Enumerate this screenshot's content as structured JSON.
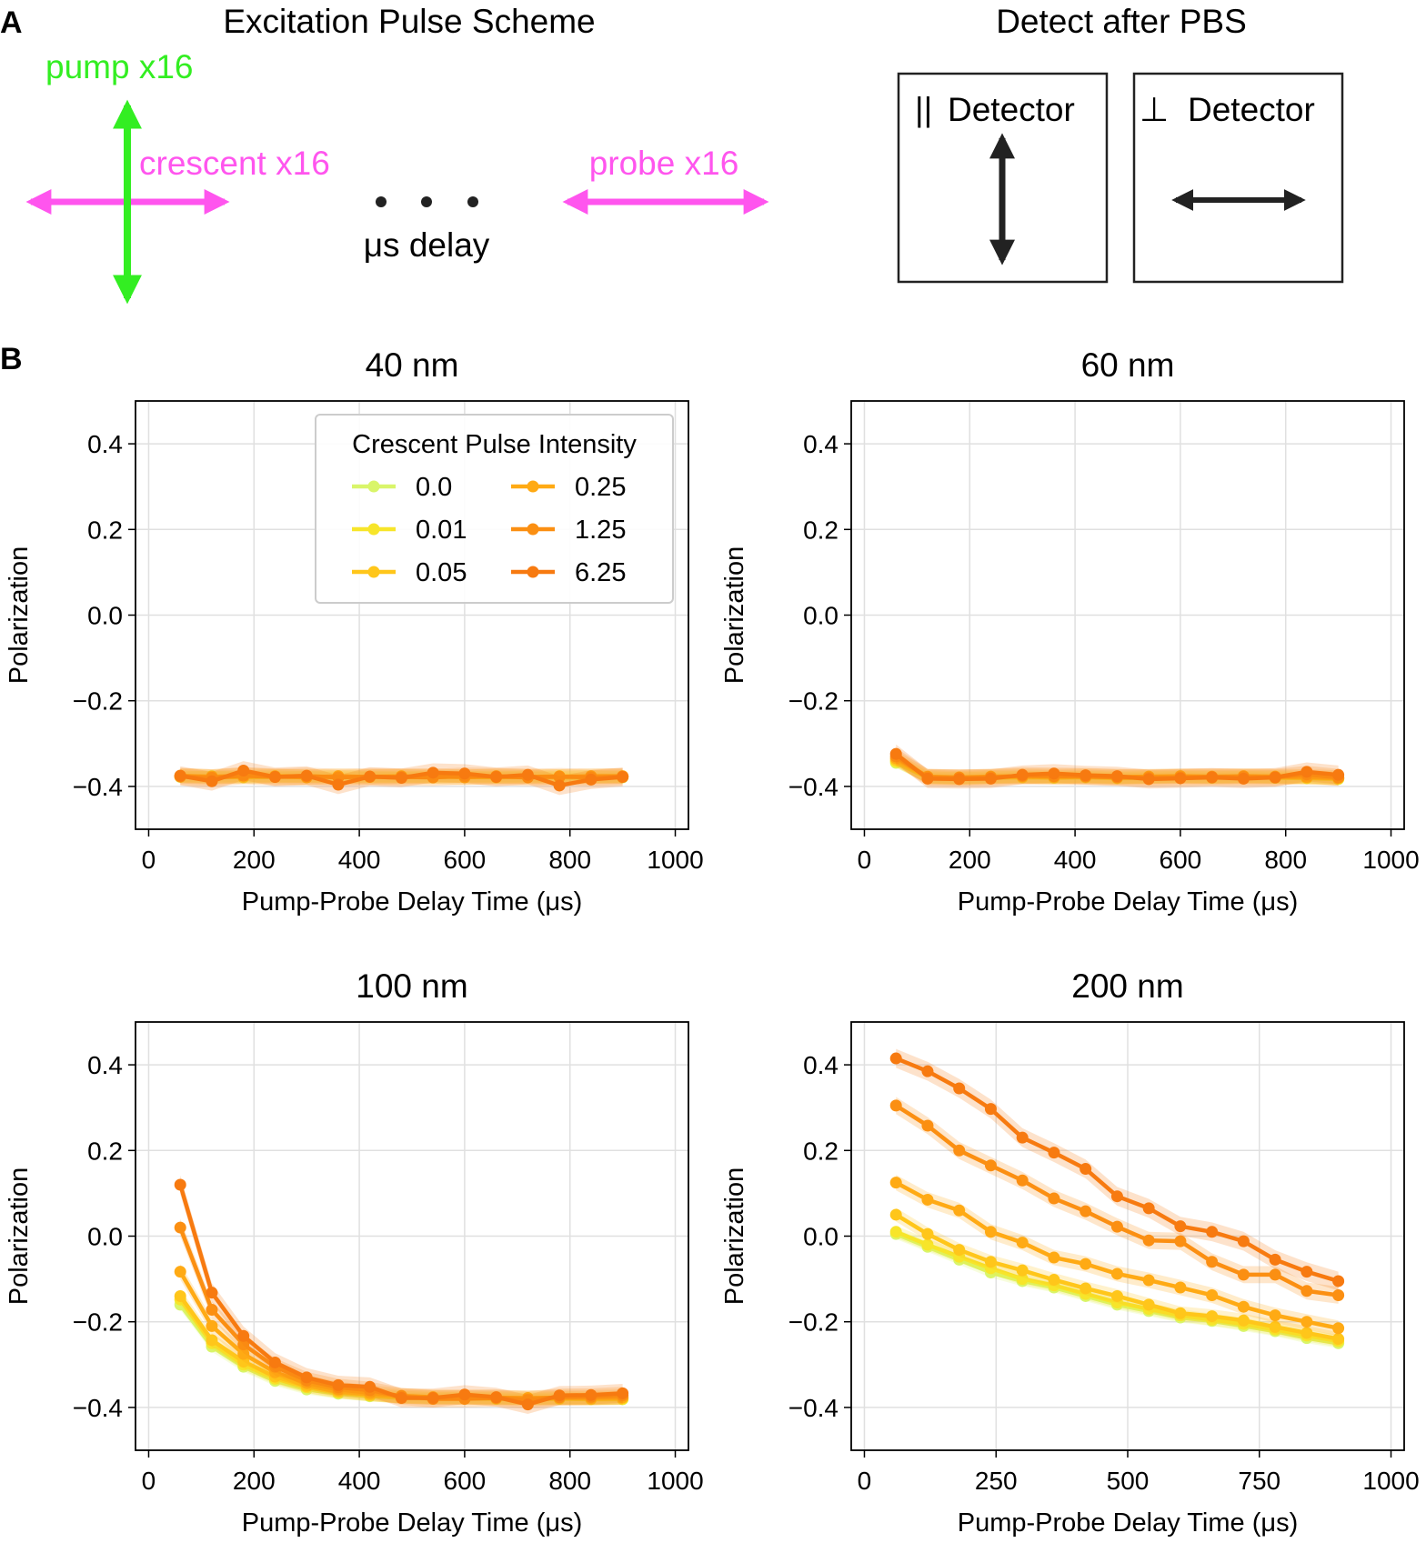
{
  "colors": {
    "pump": "#33ee22",
    "crescent": "#ff55ee",
    "probe": "#ff55ee",
    "black": "#222222",
    "grid": "#e0e0e0",
    "series": [
      "#d9f56a",
      "#f7e52a",
      "#ffc61a",
      "#ffaa14",
      "#fb8f12",
      "#f77a10"
    ]
  },
  "panel_a": {
    "label": "A",
    "scheme_heading": "Excitation Pulse Scheme",
    "detect_heading": "Detect after PBS",
    "pump_label": "pump x16",
    "crescent_label": "crescent x16",
    "probe_label": "probe x16",
    "delay_label": "μs delay",
    "parallel_symbol": "||",
    "perp_symbol": "⊥",
    "detector_word": "Detector"
  },
  "panel_b": {
    "label": "B"
  },
  "chart_data": [
    {
      "type": "line",
      "title": "40 nm",
      "xlabel": "Pump-Probe Delay Time (μs)",
      "ylabel": "Polarization",
      "xlim": [
        -25,
        1025
      ],
      "ylim": [
        -0.5,
        0.5
      ],
      "xticks": [
        0,
        200,
        400,
        600,
        800,
        1000
      ],
      "xtick_labels": [
        "0",
        "200",
        "400",
        "600",
        "800",
        "1000"
      ],
      "yticks": [
        -0.4,
        -0.2,
        0.0,
        0.2,
        0.4
      ],
      "ytick_labels": [
        "−0.4",
        "−0.2",
        "0.0",
        "0.2",
        "0.4"
      ],
      "grid": true,
      "legend": {
        "title": "Crescent Pulse Intensity",
        "placement": "top-right",
        "entries": [
          "0.0",
          "0.01",
          "0.05",
          "0.25",
          "1.25",
          "6.25"
        ]
      },
      "x": [
        60,
        120,
        180,
        240,
        300,
        360,
        420,
        480,
        540,
        600,
        660,
        720,
        780,
        840,
        900
      ],
      "series": [
        {
          "name": "0.0",
          "values": [
            -0.378,
            -0.376,
            -0.379,
            -0.378,
            -0.377,
            -0.379,
            -0.378,
            -0.378,
            -0.379,
            -0.377,
            -0.378,
            -0.378,
            -0.379,
            -0.38,
            -0.379
          ]
        },
        {
          "name": "0.01",
          "values": [
            -0.377,
            -0.379,
            -0.377,
            -0.377,
            -0.378,
            -0.377,
            -0.378,
            -0.379,
            -0.377,
            -0.378,
            -0.379,
            -0.377,
            -0.378,
            -0.377,
            -0.378
          ]
        },
        {
          "name": "0.05",
          "values": [
            -0.376,
            -0.377,
            -0.378,
            -0.376,
            -0.376,
            -0.378,
            -0.377,
            -0.376,
            -0.378,
            -0.376,
            -0.377,
            -0.378,
            -0.376,
            -0.378,
            -0.377
          ]
        },
        {
          "name": "0.25",
          "values": [
            -0.375,
            -0.378,
            -0.374,
            -0.377,
            -0.379,
            -0.376,
            -0.378,
            -0.377,
            -0.376,
            -0.379,
            -0.376,
            -0.377,
            -0.378,
            -0.376,
            -0.376
          ]
        },
        {
          "name": "1.25",
          "values": [
            -0.377,
            -0.38,
            -0.375,
            -0.378,
            -0.376,
            -0.379,
            -0.377,
            -0.378,
            -0.379,
            -0.376,
            -0.377,
            -0.379,
            -0.377,
            -0.379,
            -0.377
          ]
        },
        {
          "name": "6.25",
          "values": [
            -0.375,
            -0.388,
            -0.363,
            -0.378,
            -0.375,
            -0.396,
            -0.377,
            -0.38,
            -0.368,
            -0.37,
            -0.378,
            -0.373,
            -0.398,
            -0.384,
            -0.378
          ]
        }
      ]
    },
    {
      "type": "line",
      "title": "60 nm",
      "xlabel": "Pump-Probe Delay Time (μs)",
      "ylabel": "Polarization",
      "xlim": [
        -25,
        1025
      ],
      "ylim": [
        -0.5,
        0.5
      ],
      "xticks": [
        0,
        200,
        400,
        600,
        800,
        1000
      ],
      "xtick_labels": [
        "0",
        "200",
        "400",
        "600",
        "800",
        "1000"
      ],
      "yticks": [
        -0.4,
        -0.2,
        0.0,
        0.2,
        0.4
      ],
      "ytick_labels": [
        "−0.4",
        "−0.2",
        "0.0",
        "0.2",
        "0.4"
      ],
      "grid": true,
      "x": [
        60,
        120,
        180,
        240,
        300,
        360,
        420,
        480,
        540,
        600,
        660,
        720,
        780,
        840,
        900
      ],
      "series": [
        {
          "name": "0.0",
          "values": [
            -0.345,
            -0.38,
            -0.382,
            -0.38,
            -0.379,
            -0.38,
            -0.379,
            -0.381,
            -0.38,
            -0.379,
            -0.38,
            -0.379,
            -0.38,
            -0.381,
            -0.383
          ]
        },
        {
          "name": "0.01",
          "values": [
            -0.342,
            -0.379,
            -0.381,
            -0.379,
            -0.378,
            -0.379,
            -0.378,
            -0.38,
            -0.379,
            -0.378,
            -0.379,
            -0.378,
            -0.379,
            -0.38,
            -0.382
          ]
        },
        {
          "name": "0.05",
          "values": [
            -0.338,
            -0.378,
            -0.38,
            -0.378,
            -0.377,
            -0.378,
            -0.377,
            -0.379,
            -0.378,
            -0.377,
            -0.378,
            -0.377,
            -0.378,
            -0.379,
            -0.381
          ]
        },
        {
          "name": "0.25",
          "values": [
            -0.334,
            -0.377,
            -0.379,
            -0.377,
            -0.376,
            -0.377,
            -0.376,
            -0.378,
            -0.377,
            -0.376,
            -0.377,
            -0.376,
            -0.377,
            -0.378,
            -0.38
          ]
        },
        {
          "name": "1.25",
          "values": [
            -0.33,
            -0.379,
            -0.38,
            -0.379,
            -0.375,
            -0.376,
            -0.377,
            -0.379,
            -0.38,
            -0.379,
            -0.378,
            -0.378,
            -0.379,
            -0.372,
            -0.379
          ]
        },
        {
          "name": "6.25",
          "values": [
            -0.324,
            -0.382,
            -0.383,
            -0.382,
            -0.373,
            -0.37,
            -0.374,
            -0.376,
            -0.383,
            -0.381,
            -0.379,
            -0.382,
            -0.379,
            -0.366,
            -0.373
          ]
        }
      ]
    },
    {
      "type": "line",
      "title": "100 nm",
      "xlabel": "Pump-Probe Delay Time (μs)",
      "ylabel": "Polarization",
      "xlim": [
        -25,
        1025
      ],
      "ylim": [
        -0.5,
        0.5
      ],
      "xticks": [
        0,
        200,
        400,
        600,
        800,
        1000
      ],
      "xtick_labels": [
        "0",
        "200",
        "400",
        "600",
        "800",
        "1000"
      ],
      "yticks": [
        -0.4,
        -0.2,
        0.0,
        0.2,
        0.4
      ],
      "ytick_labels": [
        "−0.4",
        "−0.2",
        "0.0",
        "0.2",
        "0.4"
      ],
      "grid": true,
      "x": [
        60,
        120,
        180,
        240,
        300,
        360,
        420,
        480,
        540,
        600,
        660,
        720,
        780,
        840,
        900
      ],
      "series": [
        {
          "name": "0.0",
          "values": [
            -0.16,
            -0.258,
            -0.305,
            -0.338,
            -0.358,
            -0.368,
            -0.374,
            -0.378,
            -0.379,
            -0.379,
            -0.38,
            -0.381,
            -0.38,
            -0.381,
            -0.381
          ]
        },
        {
          "name": "0.01",
          "values": [
            -0.148,
            -0.25,
            -0.3,
            -0.333,
            -0.353,
            -0.365,
            -0.372,
            -0.376,
            -0.378,
            -0.378,
            -0.379,
            -0.38,
            -0.379,
            -0.38,
            -0.38
          ]
        },
        {
          "name": "0.05",
          "values": [
            -0.14,
            -0.243,
            -0.293,
            -0.328,
            -0.35,
            -0.362,
            -0.37,
            -0.375,
            -0.377,
            -0.377,
            -0.378,
            -0.379,
            -0.378,
            -0.379,
            -0.378
          ]
        },
        {
          "name": "0.25",
          "values": [
            -0.083,
            -0.21,
            -0.275,
            -0.318,
            -0.343,
            -0.358,
            -0.366,
            -0.373,
            -0.376,
            -0.376,
            -0.377,
            -0.378,
            -0.377,
            -0.377,
            -0.376
          ]
        },
        {
          "name": "1.25",
          "values": [
            0.02,
            -0.172,
            -0.253,
            -0.305,
            -0.337,
            -0.353,
            -0.36,
            -0.374,
            -0.38,
            -0.38,
            -0.378,
            -0.382,
            -0.376,
            -0.375,
            -0.372
          ]
        },
        {
          "name": "6.25",
          "values": [
            0.12,
            -0.132,
            -0.233,
            -0.295,
            -0.33,
            -0.348,
            -0.352,
            -0.378,
            -0.378,
            -0.37,
            -0.376,
            -0.393,
            -0.372,
            -0.371,
            -0.367
          ]
        }
      ]
    },
    {
      "type": "line",
      "title": "200 nm",
      "xlabel": "Pump-Probe Delay Time (μs)",
      "ylabel": "Polarization",
      "xlim": [
        -25,
        1025
      ],
      "ylim": [
        -0.5,
        0.5
      ],
      "xticks": [
        0,
        250,
        500,
        750,
        1000
      ],
      "xtick_labels": [
        "0",
        "250",
        "500",
        "750",
        "1000"
      ],
      "yticks": [
        -0.4,
        -0.2,
        0.0,
        0.2,
        0.4
      ],
      "ytick_labels": [
        "−0.4",
        "−0.2",
        "0.0",
        "0.2",
        "0.4"
      ],
      "grid": true,
      "x": [
        60,
        120,
        180,
        240,
        300,
        360,
        420,
        480,
        540,
        600,
        660,
        720,
        780,
        840,
        900
      ],
      "series": [
        {
          "name": "0.0",
          "values": [
            0.005,
            -0.025,
            -0.055,
            -0.085,
            -0.105,
            -0.12,
            -0.14,
            -0.16,
            -0.175,
            -0.19,
            -0.198,
            -0.21,
            -0.222,
            -0.238,
            -0.25
          ]
        },
        {
          "name": "0.01",
          "values": [
            0.01,
            -0.02,
            -0.048,
            -0.075,
            -0.1,
            -0.115,
            -0.135,
            -0.155,
            -0.17,
            -0.185,
            -0.195,
            -0.205,
            -0.218,
            -0.232,
            -0.245
          ]
        },
        {
          "name": "0.05",
          "values": [
            0.05,
            0.005,
            -0.032,
            -0.06,
            -0.08,
            -0.102,
            -0.122,
            -0.14,
            -0.16,
            -0.18,
            -0.187,
            -0.197,
            -0.212,
            -0.226,
            -0.24
          ]
        },
        {
          "name": "0.25",
          "values": [
            0.125,
            0.085,
            0.06,
            0.01,
            -0.015,
            -0.05,
            -0.065,
            -0.088,
            -0.103,
            -0.12,
            -0.138,
            -0.165,
            -0.185,
            -0.2,
            -0.215
          ]
        },
        {
          "name": "1.25",
          "values": [
            0.305,
            0.258,
            0.2,
            0.165,
            0.13,
            0.088,
            0.058,
            0.022,
            -0.01,
            -0.012,
            -0.06,
            -0.09,
            -0.09,
            -0.128,
            -0.138
          ]
        },
        {
          "name": "6.25",
          "values": [
            0.415,
            0.385,
            0.345,
            0.297,
            0.23,
            0.195,
            0.157,
            0.093,
            0.065,
            0.023,
            0.01,
            -0.012,
            -0.055,
            -0.083,
            -0.105
          ]
        }
      ]
    }
  ]
}
